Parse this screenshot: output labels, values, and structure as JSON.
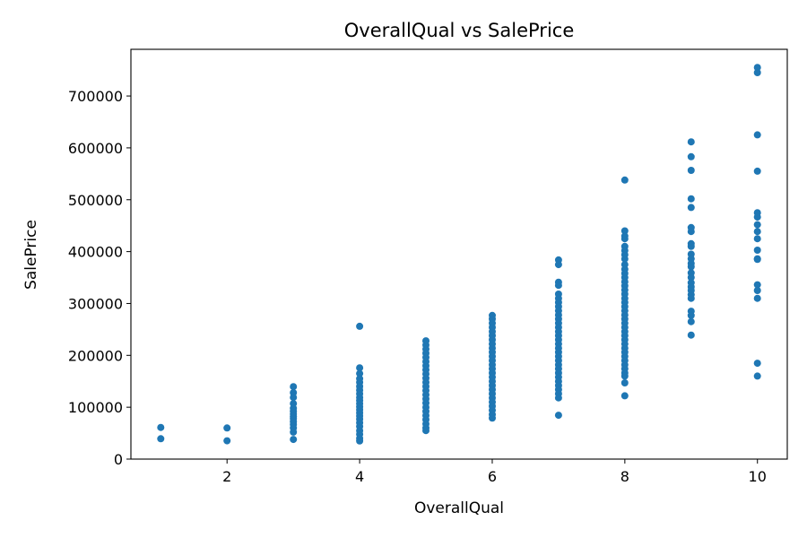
{
  "chart_data": {
    "type": "scatter",
    "title": "OverallQual vs SalePrice",
    "xlabel": "OverallQual",
    "ylabel": "SalePrice",
    "xlim": [
      0.55,
      10.45
    ],
    "ylim": [
      0,
      790000
    ],
    "x_ticks": [
      2,
      4,
      6,
      8,
      10
    ],
    "y_ticks": [
      0,
      100000,
      200000,
      300000,
      400000,
      500000,
      600000,
      700000
    ],
    "grid": false,
    "marker_color": "#1f77b4",
    "points": [
      {
        "x": 1,
        "y": 61000
      },
      {
        "x": 1,
        "y": 39300
      },
      {
        "x": 2,
        "y": 60000
      },
      {
        "x": 2,
        "y": 35311
      },
      {
        "x": 3,
        "y": 139600
      },
      {
        "x": 3,
        "y": 128000
      },
      {
        "x": 3,
        "y": 119000
      },
      {
        "x": 3,
        "y": 107000
      },
      {
        "x": 3,
        "y": 98000
      },
      {
        "x": 3,
        "y": 92000
      },
      {
        "x": 3,
        "y": 87000
      },
      {
        "x": 3,
        "y": 82000
      },
      {
        "x": 3,
        "y": 78000
      },
      {
        "x": 3,
        "y": 72000
      },
      {
        "x": 3,
        "y": 67000
      },
      {
        "x": 3,
        "y": 60000
      },
      {
        "x": 3,
        "y": 52000
      },
      {
        "x": 3,
        "y": 37900
      },
      {
        "x": 4,
        "y": 256000
      },
      {
        "x": 4,
        "y": 176000
      },
      {
        "x": 4,
        "y": 165000
      },
      {
        "x": 4,
        "y": 155000
      },
      {
        "x": 4,
        "y": 148000
      },
      {
        "x": 4,
        "y": 140000
      },
      {
        "x": 4,
        "y": 133000
      },
      {
        "x": 4,
        "y": 126000
      },
      {
        "x": 4,
        "y": 119000
      },
      {
        "x": 4,
        "y": 113000
      },
      {
        "x": 4,
        "y": 107000
      },
      {
        "x": 4,
        "y": 101000
      },
      {
        "x": 4,
        "y": 95000
      },
      {
        "x": 4,
        "y": 89000
      },
      {
        "x": 4,
        "y": 83000
      },
      {
        "x": 4,
        "y": 77000
      },
      {
        "x": 4,
        "y": 70000
      },
      {
        "x": 4,
        "y": 63000
      },
      {
        "x": 4,
        "y": 55000
      },
      {
        "x": 4,
        "y": 48000
      },
      {
        "x": 4,
        "y": 40000
      },
      {
        "x": 4,
        "y": 34900
      },
      {
        "x": 5,
        "y": 228000
      },
      {
        "x": 5,
        "y": 220000
      },
      {
        "x": 5,
        "y": 212000
      },
      {
        "x": 5,
        "y": 204000
      },
      {
        "x": 5,
        "y": 196000
      },
      {
        "x": 5,
        "y": 188000
      },
      {
        "x": 5,
        "y": 180000
      },
      {
        "x": 5,
        "y": 172000
      },
      {
        "x": 5,
        "y": 164000
      },
      {
        "x": 5,
        "y": 156000
      },
      {
        "x": 5,
        "y": 148000
      },
      {
        "x": 5,
        "y": 140000
      },
      {
        "x": 5,
        "y": 132000
      },
      {
        "x": 5,
        "y": 124000
      },
      {
        "x": 5,
        "y": 116000
      },
      {
        "x": 5,
        "y": 108000
      },
      {
        "x": 5,
        "y": 100000
      },
      {
        "x": 5,
        "y": 92000
      },
      {
        "x": 5,
        "y": 84000
      },
      {
        "x": 5,
        "y": 76000
      },
      {
        "x": 5,
        "y": 68000
      },
      {
        "x": 5,
        "y": 60000
      },
      {
        "x": 5,
        "y": 55000
      },
      {
        "x": 6,
        "y": 277000
      },
      {
        "x": 6,
        "y": 270000
      },
      {
        "x": 6,
        "y": 262000
      },
      {
        "x": 6,
        "y": 254000
      },
      {
        "x": 6,
        "y": 246000
      },
      {
        "x": 6,
        "y": 238000
      },
      {
        "x": 6,
        "y": 230000
      },
      {
        "x": 6,
        "y": 222000
      },
      {
        "x": 6,
        "y": 214000
      },
      {
        "x": 6,
        "y": 206000
      },
      {
        "x": 6,
        "y": 198000
      },
      {
        "x": 6,
        "y": 190000
      },
      {
        "x": 6,
        "y": 182000
      },
      {
        "x": 6,
        "y": 174000
      },
      {
        "x": 6,
        "y": 166000
      },
      {
        "x": 6,
        "y": 158000
      },
      {
        "x": 6,
        "y": 150000
      },
      {
        "x": 6,
        "y": 142000
      },
      {
        "x": 6,
        "y": 134000
      },
      {
        "x": 6,
        "y": 126000
      },
      {
        "x": 6,
        "y": 118000
      },
      {
        "x": 6,
        "y": 110000
      },
      {
        "x": 6,
        "y": 102000
      },
      {
        "x": 6,
        "y": 94000
      },
      {
        "x": 6,
        "y": 86000
      },
      {
        "x": 6,
        "y": 79000
      },
      {
        "x": 7,
        "y": 383970
      },
      {
        "x": 7,
        "y": 375000
      },
      {
        "x": 7,
        "y": 341000
      },
      {
        "x": 7,
        "y": 335000
      },
      {
        "x": 7,
        "y": 318000
      },
      {
        "x": 7,
        "y": 310000
      },
      {
        "x": 7,
        "y": 302000
      },
      {
        "x": 7,
        "y": 294000
      },
      {
        "x": 7,
        "y": 286000
      },
      {
        "x": 7,
        "y": 278000
      },
      {
        "x": 7,
        "y": 270000
      },
      {
        "x": 7,
        "y": 262000
      },
      {
        "x": 7,
        "y": 254000
      },
      {
        "x": 7,
        "y": 246000
      },
      {
        "x": 7,
        "y": 238000
      },
      {
        "x": 7,
        "y": 230000
      },
      {
        "x": 7,
        "y": 222000
      },
      {
        "x": 7,
        "y": 214000
      },
      {
        "x": 7,
        "y": 206000
      },
      {
        "x": 7,
        "y": 198000
      },
      {
        "x": 7,
        "y": 190000
      },
      {
        "x": 7,
        "y": 182000
      },
      {
        "x": 7,
        "y": 174000
      },
      {
        "x": 7,
        "y": 166000
      },
      {
        "x": 7,
        "y": 158000
      },
      {
        "x": 7,
        "y": 150000
      },
      {
        "x": 7,
        "y": 142000
      },
      {
        "x": 7,
        "y": 134000
      },
      {
        "x": 7,
        "y": 126000
      },
      {
        "x": 7,
        "y": 118000
      },
      {
        "x": 7,
        "y": 84500
      },
      {
        "x": 8,
        "y": 538000
      },
      {
        "x": 8,
        "y": 440000
      },
      {
        "x": 8,
        "y": 430000
      },
      {
        "x": 8,
        "y": 424870
      },
      {
        "x": 8,
        "y": 410000
      },
      {
        "x": 8,
        "y": 402000
      },
      {
        "x": 8,
        "y": 394000
      },
      {
        "x": 8,
        "y": 386000
      },
      {
        "x": 8,
        "y": 375000
      },
      {
        "x": 8,
        "y": 366000
      },
      {
        "x": 8,
        "y": 358000
      },
      {
        "x": 8,
        "y": 350000
      },
      {
        "x": 8,
        "y": 342000
      },
      {
        "x": 8,
        "y": 334000
      },
      {
        "x": 8,
        "y": 326000
      },
      {
        "x": 8,
        "y": 318000
      },
      {
        "x": 8,
        "y": 310000
      },
      {
        "x": 8,
        "y": 302000
      },
      {
        "x": 8,
        "y": 294000
      },
      {
        "x": 8,
        "y": 286000
      },
      {
        "x": 8,
        "y": 278000
      },
      {
        "x": 8,
        "y": 270000
      },
      {
        "x": 8,
        "y": 262000
      },
      {
        "x": 8,
        "y": 254000
      },
      {
        "x": 8,
        "y": 246000
      },
      {
        "x": 8,
        "y": 238000
      },
      {
        "x": 8,
        "y": 230000
      },
      {
        "x": 8,
        "y": 222000
      },
      {
        "x": 8,
        "y": 214000
      },
      {
        "x": 8,
        "y": 206000
      },
      {
        "x": 8,
        "y": 198000
      },
      {
        "x": 8,
        "y": 190000
      },
      {
        "x": 8,
        "y": 182000
      },
      {
        "x": 8,
        "y": 174000
      },
      {
        "x": 8,
        "y": 166000
      },
      {
        "x": 8,
        "y": 160000
      },
      {
        "x": 8,
        "y": 147000
      },
      {
        "x": 8,
        "y": 122000
      },
      {
        "x": 9,
        "y": 611657
      },
      {
        "x": 9,
        "y": 582933
      },
      {
        "x": 9,
        "y": 556581
      },
      {
        "x": 9,
        "y": 501837
      },
      {
        "x": 9,
        "y": 485000
      },
      {
        "x": 9,
        "y": 446261
      },
      {
        "x": 9,
        "y": 438780
      },
      {
        "x": 9,
        "y": 415298
      },
      {
        "x": 9,
        "y": 410000
      },
      {
        "x": 9,
        "y": 395000
      },
      {
        "x": 9,
        "y": 386250
      },
      {
        "x": 9,
        "y": 377426
      },
      {
        "x": 9,
        "y": 370878
      },
      {
        "x": 9,
        "y": 359100
      },
      {
        "x": 9,
        "y": 350000
      },
      {
        "x": 9,
        "y": 340000
      },
      {
        "x": 9,
        "y": 332000
      },
      {
        "x": 9,
        "y": 325000
      },
      {
        "x": 9,
        "y": 317000
      },
      {
        "x": 9,
        "y": 310000
      },
      {
        "x": 9,
        "y": 285000
      },
      {
        "x": 9,
        "y": 277000
      },
      {
        "x": 9,
        "y": 265000
      },
      {
        "x": 9,
        "y": 239000
      },
      {
        "x": 10,
        "y": 755000
      },
      {
        "x": 10,
        "y": 745000
      },
      {
        "x": 10,
        "y": 625000
      },
      {
        "x": 10,
        "y": 555000
      },
      {
        "x": 10,
        "y": 475000
      },
      {
        "x": 10,
        "y": 466500
      },
      {
        "x": 10,
        "y": 451950
      },
      {
        "x": 10,
        "y": 438780
      },
      {
        "x": 10,
        "y": 424870
      },
      {
        "x": 10,
        "y": 402861
      },
      {
        "x": 10,
        "y": 386250
      },
      {
        "x": 10,
        "y": 385000
      },
      {
        "x": 10,
        "y": 336000
      },
      {
        "x": 10,
        "y": 325000
      },
      {
        "x": 10,
        "y": 310000
      },
      {
        "x": 10,
        "y": 184750
      },
      {
        "x": 10,
        "y": 160000
      }
    ]
  }
}
